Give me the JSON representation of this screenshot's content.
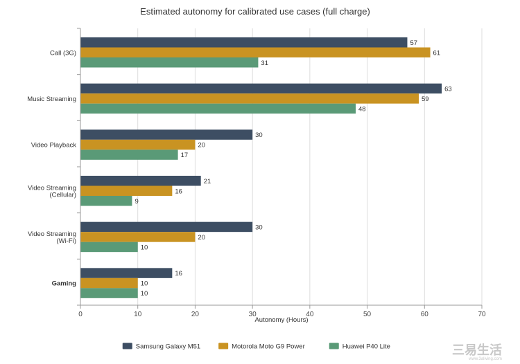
{
  "chart_data": {
    "type": "bar",
    "orientation": "horizontal",
    "title": "Estimated autonomy for calibrated use cases (full charge)",
    "xlabel": "Autonomy (Hours)",
    "ylabel": "",
    "xlim": [
      0,
      70
    ],
    "x_ticks": [
      "0",
      "10",
      "20",
      "30",
      "40",
      "50",
      "60",
      "70"
    ],
    "grid": true,
    "legend_position": "bottom",
    "categories": [
      [
        "Call (3G)"
      ],
      [
        "Music Streaming"
      ],
      [
        "Video Playback"
      ],
      [
        "Video Streaming",
        "(Cellular)"
      ],
      [
        "Video Streaming",
        "(Wi-Fi)"
      ],
      [
        "Gaming"
      ]
    ],
    "bold_category_index": 5,
    "series": [
      {
        "name": "Samsung Galaxy M51",
        "color": "#3d4e63",
        "values": [
          57,
          63,
          30,
          21,
          30,
          16
        ]
      },
      {
        "name": "Motorola Moto G9 Power",
        "color": "#c99322",
        "values": [
          61,
          59,
          20,
          16,
          20,
          10
        ]
      },
      {
        "name": "Huawei P40 Lite",
        "color": "#5a9a77",
        "values": [
          31,
          48,
          17,
          9,
          10,
          10
        ]
      }
    ]
  },
  "watermark": {
    "main": "三易生活",
    "sub": "www.3aliving.com"
  }
}
